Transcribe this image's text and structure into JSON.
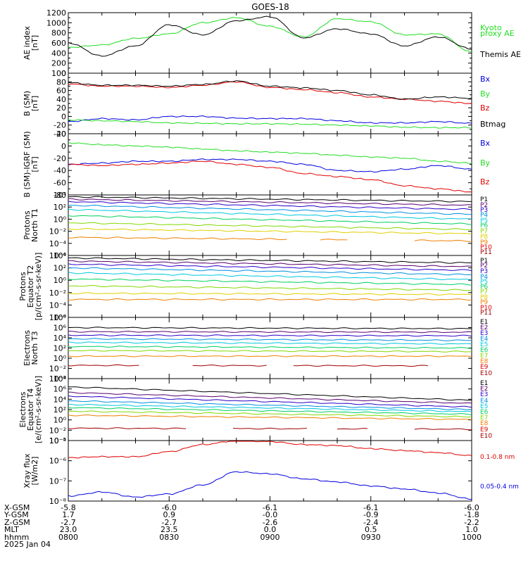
{
  "title": "GOES-18",
  "colors": {
    "black": "#000000",
    "red": "#e00000",
    "green": "#22dd22",
    "blue": "#0000dd",
    "P1": "#000000",
    "P2": "#5a0070",
    "P3": "#2a00c8",
    "P4": "#0090e0",
    "P5": "#00c8e0",
    "P6": "#00d060",
    "P7": "#80d800",
    "P8": "#e0d000",
    "P9": "#f08000",
    "P10": "#e00000",
    "P11": "#a00000"
  },
  "chart_data": [
    {
      "type": "line",
      "ylabel": [
        "AE index",
        "[nT]"
      ],
      "yscale": "linear",
      "ylim": [
        0,
        1200
      ],
      "yticks": [
        "0",
        "200",
        "400",
        "600",
        "800",
        "1000",
        "1200"
      ],
      "yticks_values": [
        0,
        200,
        400,
        600,
        800,
        1000,
        1200
      ],
      "x": [
        "0800",
        "0810",
        "0820",
        "0830",
        "0840",
        "0850",
        "0900",
        "0910",
        "0920",
        "0930",
        "0940",
        "0950",
        "1000"
      ],
      "legend": [
        {
          "text": "Kyoto",
          "color": "green"
        },
        {
          "text": "proxy AE",
          "color": "green"
        },
        {
          "text": "Themis AE",
          "color": "black"
        }
      ],
      "series": [
        {
          "name": "Kyoto proxy AE",
          "color": "green",
          "values": [
            510,
            560,
            690,
            780,
            1000,
            1100,
            930,
            720,
            1080,
            1020,
            760,
            780,
            420
          ]
        },
        {
          "name": "Themis AE",
          "color": "black",
          "values": [
            600,
            340,
            540,
            960,
            760,
            1040,
            1120,
            700,
            880,
            780,
            540,
            720,
            480
          ]
        }
      ]
    },
    {
      "type": "line",
      "ylabel": [
        "B (SM)",
        "[nT]"
      ],
      "yscale": "linear",
      "ylim": [
        -40,
        100
      ],
      "yticks": [
        "-40",
        "-20",
        "0",
        "20",
        "40",
        "60",
        "80",
        "100"
      ],
      "yticks_values": [
        -40,
        -20,
        0,
        20,
        40,
        60,
        80,
        100
      ],
      "x": [
        "0800",
        "0810",
        "0820",
        "0830",
        "0840",
        "0850",
        "0900",
        "0910",
        "0920",
        "0930",
        "0940",
        "0950",
        "1000"
      ],
      "legend": [
        {
          "text": "Bx",
          "color": "blue"
        },
        {
          "text": "By",
          "color": "green"
        },
        {
          "text": "Bz",
          "color": "red"
        },
        {
          "text": "Btmag",
          "color": "black"
        }
      ],
      "series": [
        {
          "name": "Bx",
          "color": "blue",
          "values": [
            -12,
            -5,
            -8,
            0,
            0,
            -4,
            -5,
            -5,
            -10,
            -15,
            -15,
            -12,
            -16
          ]
        },
        {
          "name": "By",
          "color": "green",
          "values": [
            -8,
            -10,
            -12,
            -15,
            -16,
            -17,
            -17,
            -18,
            -20,
            -22,
            -25,
            -26,
            -26
          ]
        },
        {
          "name": "Bz",
          "color": "red",
          "values": [
            75,
            70,
            70,
            67,
            72,
            80,
            67,
            62,
            55,
            45,
            40,
            35,
            30
          ]
        },
        {
          "name": "Btmag",
          "color": "black",
          "values": [
            78,
            72,
            72,
            70,
            74,
            82,
            70,
            66,
            60,
            50,
            40,
            45,
            42
          ]
        }
      ]
    },
    {
      "type": "line",
      "ylabel": [
        "B (SM)-IGRF (SM)",
        "[nT]"
      ],
      "yscale": "linear",
      "ylim": [
        -80,
        20
      ],
      "yticks": [
        "-80",
        "-60",
        "-40",
        "-20",
        "0",
        "20"
      ],
      "yticks_values": [
        -80,
        -60,
        -40,
        -20,
        0,
        20
      ],
      "x": [
        "0800",
        "0810",
        "0820",
        "0830",
        "0840",
        "0850",
        "0900",
        "0910",
        "0920",
        "0930",
        "0940",
        "0950",
        "1000"
      ],
      "legend": [
        {
          "text": "Bx",
          "color": "blue"
        },
        {
          "text": "By",
          "color": "green"
        },
        {
          "text": "Bz",
          "color": "red"
        }
      ],
      "series": [
        {
          "name": "Bx",
          "color": "blue",
          "values": [
            -30,
            -28,
            -25,
            -25,
            -22,
            -22,
            -25,
            -30,
            -40,
            -42,
            -38,
            -32,
            -38
          ]
        },
        {
          "name": "By",
          "color": "green",
          "values": [
            5,
            2,
            0,
            -2,
            -5,
            -8,
            -10,
            -12,
            -15,
            -18,
            -20,
            -25,
            -28
          ]
        },
        {
          "name": "Bz",
          "color": "red",
          "values": [
            -30,
            -32,
            -30,
            -28,
            -25,
            -30,
            -35,
            -45,
            -50,
            -55,
            -65,
            -70,
            -75
          ]
        }
      ]
    },
    {
      "type": "line",
      "ylabel": [
        "Protons",
        "North T1"
      ],
      "yscale": "log",
      "ylim_exp": [
        -6,
        4
      ],
      "yticks": [
        "10⁻⁶",
        "10⁻⁴",
        "10⁻²",
        "10⁰",
        "10²",
        "10⁴"
      ],
      "yticks_values": [
        -6,
        -4,
        -2,
        0,
        2,
        4
      ],
      "legend": [
        {
          "text": "P1",
          "color": "P1"
        },
        {
          "text": "P2",
          "color": "P2"
        },
        {
          "text": "P3",
          "color": "P3"
        },
        {
          "text": "P4",
          "color": "P4"
        },
        {
          "text": "P5",
          "color": "P5"
        },
        {
          "text": "P6",
          "color": "P6"
        },
        {
          "text": "P7",
          "color": "P7"
        },
        {
          "text": "P8",
          "color": "P8"
        },
        {
          "text": "P9",
          "color": "P9"
        },
        {
          "text": "P10",
          "color": "P10"
        },
        {
          "text": "P11",
          "color": "P11"
        }
      ],
      "series": [
        {
          "name": "P1",
          "color": "P1",
          "start": 3.7,
          "end": 2.9
        },
        {
          "name": "P2",
          "color": "P2",
          "start": 3.3,
          "end": 2.3
        },
        {
          "name": "P3",
          "color": "P3",
          "start": 2.9,
          "end": 1.6
        },
        {
          "name": "P4",
          "color": "P4",
          "start": 2.3,
          "end": 0.8
        },
        {
          "name": "P5",
          "color": "P5",
          "start": 1.6,
          "end": 0.0
        },
        {
          "name": "P6",
          "color": "P6",
          "start": 0.6,
          "end": -0.8
        },
        {
          "name": "P7",
          "color": "P7",
          "start": -0.6,
          "end": -1.7
        },
        {
          "name": "P8",
          "color": "P8",
          "start": -1.6,
          "end": -2.4
        },
        {
          "name": "P9",
          "color": "P9",
          "start": -3.0,
          "end": -3.6,
          "gaps": [
            [
              0.55,
              0.62
            ],
            [
              0.7,
              0.85
            ]
          ]
        }
      ]
    },
    {
      "type": "line",
      "ylabel": [
        "Protons",
        "Equator T2",
        "[p/(cm²-s-sr-keV)]"
      ],
      "yscale": "log",
      "ylim_exp": [
        -6,
        4
      ],
      "yticks": [
        "10⁻⁶",
        "10⁻⁴",
        "10⁻²",
        "10⁰",
        "10²",
        "10⁴"
      ],
      "yticks_values": [
        -6,
        -4,
        -2,
        0,
        2,
        4
      ],
      "legend": [
        {
          "text": "P1",
          "color": "P1"
        },
        {
          "text": "P2",
          "color": "P2"
        },
        {
          "text": "P3",
          "color": "P3"
        },
        {
          "text": "P4",
          "color": "P4"
        },
        {
          "text": "P5",
          "color": "P5"
        },
        {
          "text": "P6",
          "color": "P6"
        },
        {
          "text": "P7",
          "color": "P7"
        },
        {
          "text": "P8",
          "color": "P8"
        },
        {
          "text": "P9",
          "color": "P9"
        },
        {
          "text": "P10",
          "color": "P10"
        },
        {
          "text": "P11",
          "color": "P11"
        }
      ],
      "series": [
        {
          "name": "P1",
          "color": "P1",
          "start": 3.6,
          "end": 2.8
        },
        {
          "name": "P2",
          "color": "P2",
          "start": 3.1,
          "end": 2.2
        },
        {
          "name": "P3",
          "color": "P3",
          "start": 2.6,
          "end": 1.6
        },
        {
          "name": "P4",
          "color": "P4",
          "start": 2.0,
          "end": 0.9
        },
        {
          "name": "P5",
          "color": "P5",
          "start": 1.2,
          "end": 0.1
        },
        {
          "name": "P6",
          "color": "P6",
          "start": 0.2,
          "end": -0.7
        },
        {
          "name": "P7",
          "color": "P7",
          "start": -0.9,
          "end": -1.6
        },
        {
          "name": "P8",
          "color": "P8",
          "start": -2.1,
          "end": -2.3
        },
        {
          "name": "P9",
          "color": "P9",
          "start": -3.1,
          "end": -3.1
        }
      ]
    },
    {
      "type": "line",
      "ylabel": [
        "Electrons",
        "North T3"
      ],
      "yscale": "log",
      "ylim_exp": [
        -4,
        8
      ],
      "yticks": [
        "10⁻⁴",
        "10⁻²",
        "10⁰",
        "10²",
        "10⁴",
        "10⁶",
        "10⁸"
      ],
      "yticks_values": [
        -4,
        -2,
        0,
        2,
        4,
        6,
        8
      ],
      "legend": [
        {
          "text": "E1",
          "color": "P1"
        },
        {
          "text": "E2",
          "color": "P2"
        },
        {
          "text": "E3",
          "color": "P3"
        },
        {
          "text": "E4",
          "color": "P4"
        },
        {
          "text": "E5",
          "color": "P5"
        },
        {
          "text": "E6",
          "color": "P6"
        },
        {
          "text": "E7",
          "color": "P7"
        },
        {
          "text": "E8",
          "color": "P9"
        },
        {
          "text": "E9",
          "color": "P10"
        },
        {
          "text": "E10",
          "color": "P11"
        }
      ],
      "series": [
        {
          "name": "E1",
          "color": "P1",
          "start": 6.0,
          "end": 5.8
        },
        {
          "name": "E2",
          "color": "P2",
          "start": 5.2,
          "end": 5.1
        },
        {
          "name": "E3",
          "color": "P3",
          "start": 4.5,
          "end": 4.4
        },
        {
          "name": "E4",
          "color": "P4",
          "start": 3.8,
          "end": 3.5
        },
        {
          "name": "E5",
          "color": "P5",
          "start": 3.1,
          "end": 2.8
        },
        {
          "name": "E6",
          "color": "P6",
          "start": 2.3,
          "end": 2.0
        },
        {
          "name": "E7",
          "color": "P7",
          "start": 1.5,
          "end": 1.3
        },
        {
          "name": "E8",
          "color": "P9",
          "start": 0.4,
          "end": 0.4
        },
        {
          "name": "E9",
          "color": "P11",
          "start": -1.4,
          "end": -1.5,
          "gaps": [
            [
              0.18,
              0.3
            ],
            [
              0.5,
              0.55
            ],
            [
              0.9,
              1.0
            ]
          ]
        }
      ]
    },
    {
      "type": "line",
      "ylabel": [
        "Electrons",
        "Equator T4",
        "[e/(cm²-s-sr-keV)]"
      ],
      "yscale": "log",
      "ylim_exp": [
        -4,
        8
      ],
      "yticks": [
        "10⁻⁴",
        "10⁻²",
        "10⁰",
        "10²",
        "10⁴",
        "10⁶",
        "10⁸"
      ],
      "yticks_values": [
        -4,
        -2,
        0,
        2,
        4,
        6,
        8
      ],
      "legend": [
        {
          "text": "E1",
          "color": "P1"
        },
        {
          "text": "E2",
          "color": "P2"
        },
        {
          "text": "E3",
          "color": "P3"
        },
        {
          "text": "E4",
          "color": "P4"
        },
        {
          "text": "E5",
          "color": "P5"
        },
        {
          "text": "E6",
          "color": "P6"
        },
        {
          "text": "E7",
          "color": "P7"
        },
        {
          "text": "E8",
          "color": "P9"
        },
        {
          "text": "E9",
          "color": "P10"
        },
        {
          "text": "E10",
          "color": "P11"
        }
      ],
      "series": [
        {
          "name": "E1",
          "color": "P1",
          "start": 6.4,
          "end": 3.8
        },
        {
          "name": "E2",
          "color": "P2",
          "start": 5.3,
          "end": 3.2
        },
        {
          "name": "E3",
          "color": "P3",
          "start": 4.6,
          "end": 2.5
        },
        {
          "name": "E4",
          "color": "P4",
          "start": 3.7,
          "end": 2.0
        },
        {
          "name": "E5",
          "color": "P5",
          "start": 3.0,
          "end": 1.6
        },
        {
          "name": "E6",
          "color": "P6",
          "start": 2.4,
          "end": 1.1
        },
        {
          "name": "E7",
          "color": "P7",
          "start": 1.7,
          "end": 0.6
        },
        {
          "name": "E8",
          "color": "P9",
          "start": 0.9,
          "end": 0.1
        },
        {
          "name": "E9",
          "color": "P11",
          "start": -1.6,
          "end": -1.8,
          "gaps": [
            [
              0.3,
              0.4
            ],
            [
              0.6,
              0.66
            ],
            [
              0.75,
              0.85
            ]
          ]
        }
      ]
    },
    {
      "type": "line",
      "ylabel": [
        "Xray flux",
        "[W/m2]"
      ],
      "yscale": "log",
      "ylim_exp": [
        -8,
        -5
      ],
      "yticks": [
        "10⁻⁸",
        "10⁻⁷",
        "10⁻⁶",
        "10⁻⁵"
      ],
      "yticks_values": [
        -8,
        -7,
        -6,
        -5
      ],
      "legend": [
        {
          "text": "0.1-0.8 nm",
          "color": "red"
        },
        {
          "text": "0.05-0.4 nm",
          "color": "blue"
        }
      ],
      "series": [
        {
          "name": "0.1-0.8 nm",
          "color": "red",
          "values": [
            -5.85,
            -5.8,
            -5.8,
            -5.55,
            -5.2,
            -5.0,
            -5.05,
            -5.2,
            -5.25,
            -5.4,
            -5.5,
            -5.6,
            -5.75
          ]
        },
        {
          "name": "0.05-0.4 nm",
          "color": "blue",
          "values": [
            -7.75,
            -7.55,
            -7.8,
            -7.65,
            -7.2,
            -6.55,
            -6.65,
            -6.9,
            -7.05,
            -7.25,
            -7.4,
            -7.6,
            -7.9
          ]
        }
      ]
    }
  ],
  "xaxis": {
    "rows": [
      {
        "label": "X-GSM",
        "values": [
          "-5.8",
          "-6.0",
          "-6.1",
          "-6.1",
          "-6.0"
        ]
      },
      {
        "label": "Y-GSM",
        "values": [
          "1.7",
          "0.9",
          "-0.0",
          "-0.9",
          "-1.8"
        ]
      },
      {
        "label": "Z-GSM",
        "values": [
          "-2.7",
          "-2.7",
          "-2.6",
          "-2.4",
          "-2.2"
        ]
      },
      {
        "label": "MLT",
        "values": [
          "23.0",
          "23.5",
          "0.0",
          "0.5",
          "1.0"
        ]
      },
      {
        "label": "hhmm",
        "values": [
          "0800",
          "0830",
          "0900",
          "0930",
          "1000"
        ]
      },
      {
        "label": "2025 Jan 04",
        "values": []
      }
    ]
  }
}
